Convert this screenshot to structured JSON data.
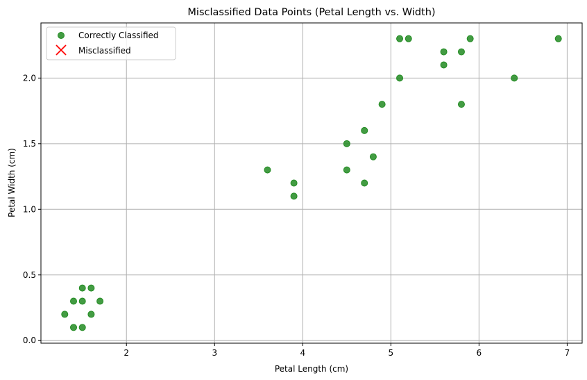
{
  "chart_data": {
    "type": "scatter",
    "title": "Misclassified Data Points (Petal Length vs. Width)",
    "xlabel": "Petal Length (cm)",
    "ylabel": "Petal Width (cm)",
    "xlim": [
      1.03,
      7.17
    ],
    "ylim": [
      -0.02,
      2.42
    ],
    "xticks": [
      2,
      3,
      4,
      5,
      6,
      7
    ],
    "xtick_labels": [
      "2",
      "3",
      "4",
      "5",
      "6",
      "7"
    ],
    "yticks": [
      0.0,
      0.5,
      1.0,
      1.5,
      2.0
    ],
    "ytick_labels": [
      "0.0",
      "0.5",
      "1.0",
      "1.5",
      "2.0"
    ],
    "grid": true,
    "legend_position": "top-left",
    "series": [
      {
        "name": "Correctly Classified",
        "marker": "circle",
        "color": "#228B22",
        "points": [
          [
            1.3,
            0.2
          ],
          [
            1.4,
            0.1
          ],
          [
            1.4,
            0.3
          ],
          [
            1.5,
            0.1
          ],
          [
            1.5,
            0.3
          ],
          [
            1.5,
            0.4
          ],
          [
            1.6,
            0.2
          ],
          [
            1.6,
            0.4
          ],
          [
            1.7,
            0.3
          ],
          [
            3.6,
            1.3
          ],
          [
            3.9,
            1.2
          ],
          [
            3.9,
            1.1
          ],
          [
            4.5,
            1.5
          ],
          [
            4.5,
            1.3
          ],
          [
            4.7,
            1.6
          ],
          [
            4.7,
            1.2
          ],
          [
            4.8,
            1.4
          ],
          [
            4.9,
            1.8
          ],
          [
            5.1,
            2.3
          ],
          [
            5.1,
            2.0
          ],
          [
            5.2,
            2.3
          ],
          [
            5.6,
            2.2
          ],
          [
            5.6,
            2.1
          ],
          [
            5.8,
            2.2
          ],
          [
            5.8,
            1.8
          ],
          [
            5.9,
            2.3
          ],
          [
            6.4,
            2.0
          ],
          [
            6.9,
            2.3
          ]
        ]
      },
      {
        "name": "Misclassified",
        "marker": "x",
        "color": "#ff0000",
        "points": []
      }
    ]
  }
}
